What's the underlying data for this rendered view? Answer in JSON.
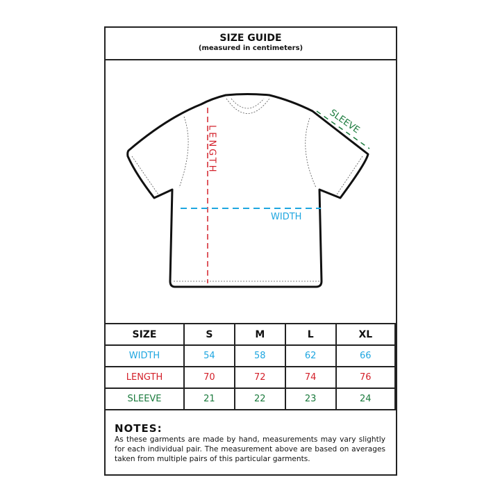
{
  "header": {
    "title": "SIZE GUIDE",
    "subtitle": "(measured in centimeters)"
  },
  "diagram": {
    "length_label": "LENGTH",
    "width_label": "WIDTH",
    "sleeve_label": "SLEEVE"
  },
  "colors": {
    "width": "#1ea6e0",
    "length": "#d3202a",
    "sleeve": "#1a7a3c"
  },
  "table": {
    "headers": [
      "SIZE",
      "S",
      "M",
      "L",
      "XL"
    ],
    "rows": [
      {
        "label": "WIDTH",
        "values": [
          "54",
          "58",
          "62",
          "66"
        ]
      },
      {
        "label": "LENGTH",
        "values": [
          "70",
          "72",
          "74",
          "76"
        ]
      },
      {
        "label": "SLEEVE",
        "values": [
          "21",
          "22",
          "23",
          "24"
        ]
      }
    ]
  },
  "notes": {
    "title": "NOTES:",
    "text": "As these garments are made by hand, measurements may vary slightly for each individual pair. The measurement above are based on averages taken from multiple pairs of this particular garments."
  }
}
